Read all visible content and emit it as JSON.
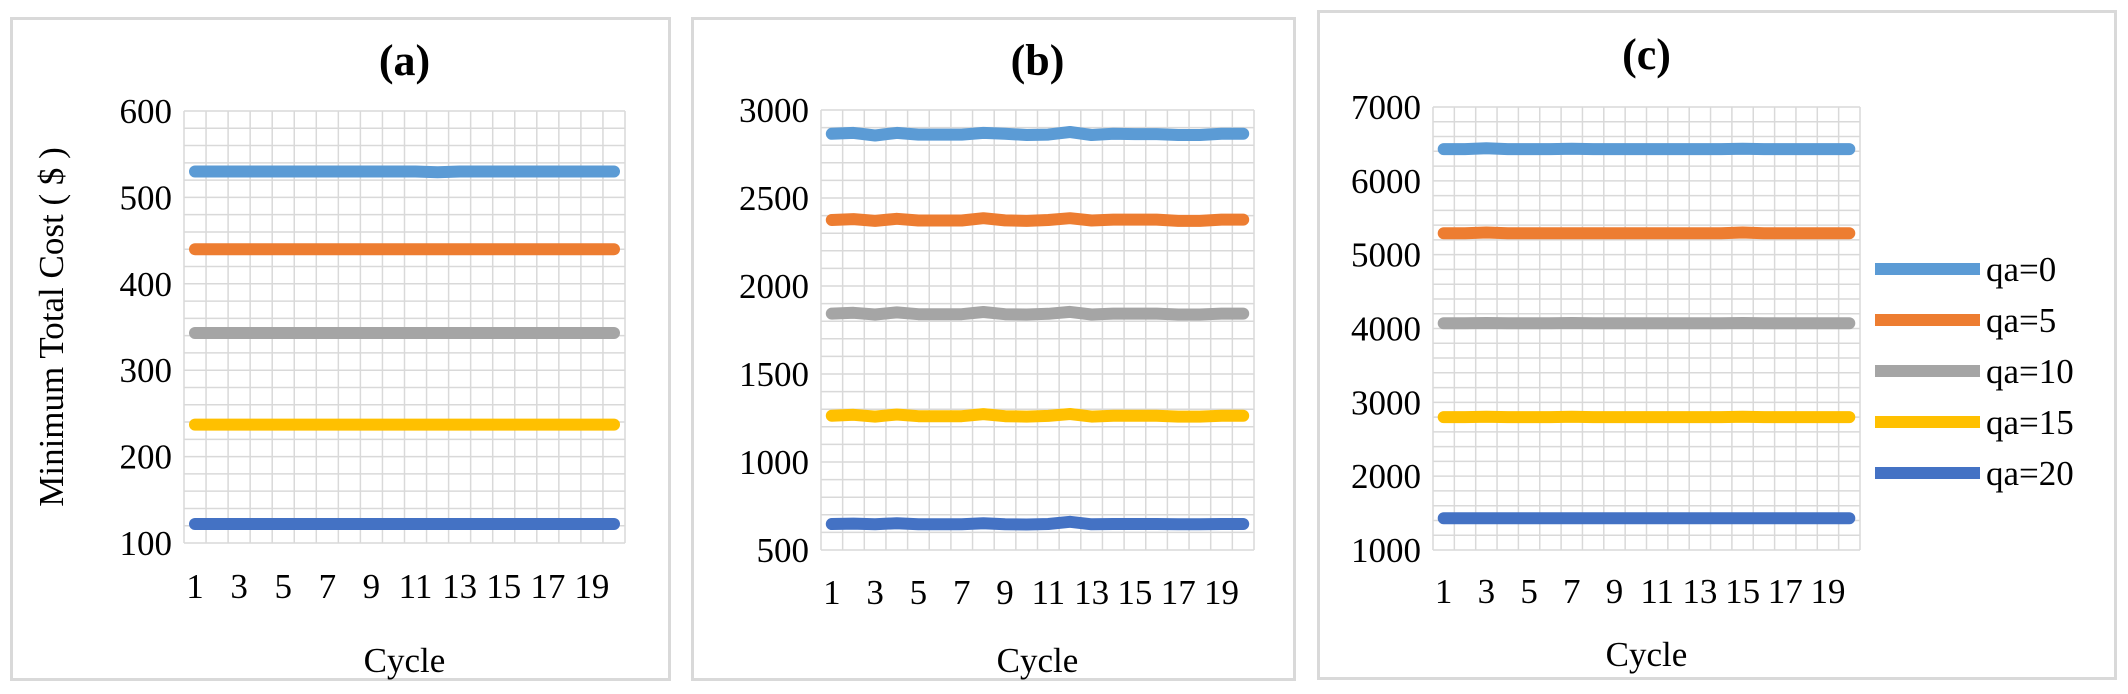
{
  "chart_data": [
    {
      "id": "a",
      "type": "line",
      "title": "(a)",
      "xlabel": "Cycle",
      "ylabel": "Minimum Total Cost ( $ )",
      "ylim": [
        100,
        600
      ],
      "yticks": [
        100,
        200,
        300,
        400,
        500,
        600
      ],
      "x": [
        1,
        2,
        3,
        4,
        5,
        6,
        7,
        8,
        9,
        10,
        11,
        12,
        13,
        14,
        15,
        16,
        17,
        18,
        19,
        20
      ],
      "xtick_labels": [
        "1",
        "3",
        "5",
        "7",
        "9",
        "11",
        "13",
        "15",
        "17",
        "19"
      ],
      "series": [
        {
          "name": "qa=0",
          "color": "#5b9bd5",
          "values": [
            530,
            530,
            530,
            530,
            530,
            530,
            530,
            530,
            530,
            530,
            530,
            529,
            530,
            530,
            530,
            530,
            530,
            530,
            530,
            530
          ]
        },
        {
          "name": "qa=5",
          "color": "#ed7d31",
          "values": [
            440,
            440,
            440,
            440,
            440,
            440,
            440,
            440,
            440,
            440,
            440,
            440,
            440,
            440,
            440,
            440,
            440,
            440,
            440,
            440
          ]
        },
        {
          "name": "qa=10",
          "color": "#a5a5a5",
          "values": [
            343,
            343,
            343,
            343,
            343,
            343,
            343,
            343,
            343,
            343,
            343,
            343,
            343,
            343,
            343,
            343,
            343,
            343,
            343,
            343
          ]
        },
        {
          "name": "qa=15",
          "color": "#ffc000",
          "values": [
            237,
            237,
            237,
            237,
            237,
            237,
            237,
            237,
            237,
            237,
            237,
            237,
            237,
            237,
            237,
            237,
            237,
            237,
            237,
            237
          ]
        },
        {
          "name": "qa=20",
          "color": "#4472c4",
          "values": [
            122,
            122,
            122,
            122,
            122,
            122,
            122,
            122,
            122,
            122,
            122,
            122,
            122,
            122,
            122,
            122,
            122,
            122,
            122,
            122
          ]
        }
      ]
    },
    {
      "id": "b",
      "type": "line",
      "title": "(b)",
      "xlabel": "Cycle",
      "ylabel": "",
      "ylim": [
        500,
        3000
      ],
      "yticks": [
        500,
        1000,
        1500,
        2000,
        2500,
        3000
      ],
      "x": [
        1,
        2,
        3,
        4,
        5,
        6,
        7,
        8,
        9,
        10,
        11,
        12,
        13,
        14,
        15,
        16,
        17,
        18,
        19,
        20
      ],
      "xtick_labels": [
        "1",
        "3",
        "5",
        "7",
        "9",
        "11",
        "13",
        "15",
        "17",
        "19"
      ],
      "series": [
        {
          "name": "qa=0",
          "color": "#5b9bd5",
          "values": [
            2865,
            2870,
            2855,
            2870,
            2860,
            2860,
            2860,
            2870,
            2865,
            2858,
            2860,
            2875,
            2858,
            2865,
            2863,
            2863,
            2858,
            2858,
            2865,
            2865
          ]
        },
        {
          "name": "qa=5",
          "color": "#ed7d31",
          "values": [
            2375,
            2380,
            2370,
            2382,
            2372,
            2372,
            2372,
            2385,
            2373,
            2370,
            2375,
            2385,
            2372,
            2377,
            2377,
            2377,
            2370,
            2370,
            2377,
            2377
          ]
        },
        {
          "name": "qa=10",
          "color": "#a5a5a5",
          "values": [
            1843,
            1848,
            1838,
            1850,
            1840,
            1840,
            1840,
            1852,
            1840,
            1838,
            1842,
            1853,
            1838,
            1843,
            1843,
            1843,
            1838,
            1838,
            1843,
            1843
          ]
        },
        {
          "name": "qa=15",
          "color": "#ffc000",
          "values": [
            1263,
            1268,
            1258,
            1270,
            1260,
            1260,
            1260,
            1272,
            1260,
            1258,
            1262,
            1273,
            1258,
            1263,
            1263,
            1263,
            1258,
            1258,
            1263,
            1263
          ]
        },
        {
          "name": "qa=20",
          "color": "#4472c4",
          "values": [
            648,
            650,
            646,
            652,
            646,
            646,
            646,
            652,
            646,
            645,
            648,
            660,
            646,
            648,
            648,
            648,
            646,
            646,
            648,
            648
          ]
        }
      ]
    },
    {
      "id": "c",
      "type": "line",
      "title": "(c)",
      "xlabel": "Cycle",
      "ylabel": "",
      "ylim": [
        1000,
        7000
      ],
      "yticks": [
        1000,
        2000,
        3000,
        4000,
        5000,
        6000,
        7000
      ],
      "x": [
        1,
        2,
        3,
        4,
        5,
        6,
        7,
        8,
        9,
        10,
        11,
        12,
        13,
        14,
        15,
        16,
        17,
        18,
        19,
        20
      ],
      "xtick_labels": [
        "1",
        "3",
        "5",
        "7",
        "9",
        "11",
        "13",
        "15",
        "17",
        "19"
      ],
      "series": [
        {
          "name": "qa=0",
          "color": "#5b9bd5",
          "values": [
            6430,
            6430,
            6440,
            6430,
            6430,
            6430,
            6435,
            6430,
            6430,
            6430,
            6430,
            6430,
            6430,
            6430,
            6435,
            6430,
            6430,
            6430,
            6430,
            6430
          ]
        },
        {
          "name": "qa=5",
          "color": "#ed7d31",
          "values": [
            5290,
            5290,
            5300,
            5290,
            5290,
            5290,
            5290,
            5290,
            5290,
            5290,
            5290,
            5290,
            5290,
            5290,
            5300,
            5290,
            5290,
            5290,
            5290,
            5290
          ]
        },
        {
          "name": "qa=10",
          "color": "#a5a5a5",
          "values": [
            4070,
            4070,
            4075,
            4070,
            4070,
            4070,
            4075,
            4070,
            4070,
            4070,
            4070,
            4070,
            4070,
            4070,
            4075,
            4070,
            4070,
            4070,
            4070,
            4070
          ]
        },
        {
          "name": "qa=15",
          "color": "#ffc000",
          "values": [
            2800,
            2800,
            2805,
            2800,
            2800,
            2800,
            2805,
            2800,
            2800,
            2800,
            2800,
            2800,
            2800,
            2800,
            2805,
            2800,
            2800,
            2800,
            2800,
            2800
          ]
        },
        {
          "name": "qa=20",
          "color": "#4472c4",
          "values": [
            1430,
            1430,
            1430,
            1430,
            1430,
            1430,
            1430,
            1430,
            1430,
            1430,
            1430,
            1430,
            1430,
            1430,
            1430,
            1430,
            1430,
            1430,
            1430,
            1430
          ]
        }
      ],
      "legend": {
        "position": "right",
        "entries": [
          "qa=0",
          "qa=5",
          "qa=10",
          "qa=15",
          "qa=20"
        ]
      }
    }
  ]
}
